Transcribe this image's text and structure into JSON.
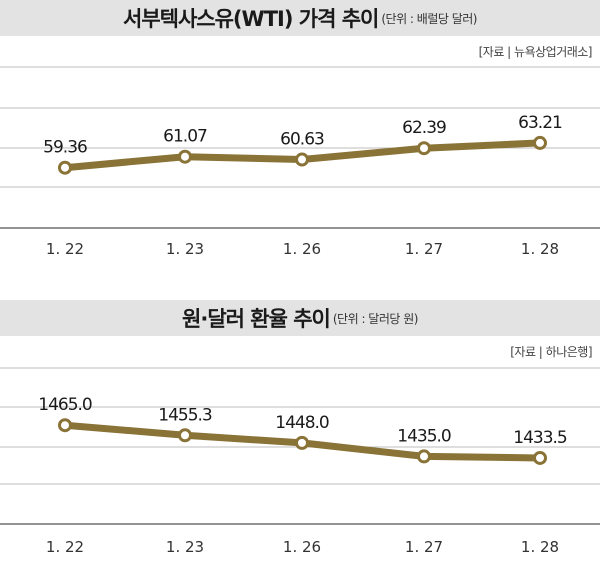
{
  "colors": {
    "line": "#8a7337",
    "marker_fill": "#ffffff",
    "title_bar": "#e3e3e3"
  },
  "chart_data": [
    {
      "type": "line",
      "title": "서부텍사스유(WTI) 가격 추이",
      "unit": "(단위 : 배럴당 달러)",
      "source": "[자료 | 뉴욕상업거래소]",
      "categories": [
        "1. 22",
        "1. 23",
        "1. 26",
        "1. 27",
        "1. 28"
      ],
      "series": [
        {
          "values": [
            59.36,
            61.07,
            60.63,
            62.39,
            63.21
          ]
        }
      ],
      "value_labels": [
        "59.36",
        "61.07",
        "60.63",
        "62.39",
        "63.21"
      ],
      "ylim": [
        50,
        75
      ],
      "grid": true
    },
    {
      "type": "line",
      "title": "원·달러 환율 추이",
      "unit": "(단위 : 달러당 원)",
      "source": "[자료 | 하나은행]",
      "categories": [
        "1. 22",
        "1. 23",
        "1. 26",
        "1. 27",
        "1. 28"
      ],
      "series": [
        {
          "values": [
            1465.0,
            1455.3,
            1448.0,
            1435.0,
            1433.5
          ]
        }
      ],
      "value_labels": [
        "1465.0",
        "1455.3",
        "1448.0",
        "1435.0",
        "1433.5"
      ],
      "ylim": [
        1370,
        1520
      ],
      "grid": true
    }
  ]
}
